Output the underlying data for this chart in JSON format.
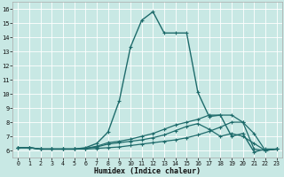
{
  "xlabel": "Humidex (Indice chaleur)",
  "bg_color": "#c8e8e4",
  "grid_color": "#ffffff",
  "line_color": "#1e6b6b",
  "xlim": [
    -0.5,
    23.5
  ],
  "ylim": [
    5.5,
    16.5
  ],
  "xticks": [
    0,
    1,
    2,
    3,
    4,
    5,
    6,
    7,
    8,
    9,
    10,
    11,
    12,
    13,
    14,
    15,
    16,
    17,
    18,
    19,
    20,
    21,
    22,
    23
  ],
  "yticks": [
    6,
    7,
    8,
    9,
    10,
    11,
    12,
    13,
    14,
    15,
    16
  ],
  "line1_x": [
    0,
    1,
    2,
    3,
    4,
    5,
    6,
    7,
    8,
    9,
    10,
    11,
    12,
    13,
    14,
    15,
    16,
    17,
    18,
    19,
    20,
    21,
    22,
    23
  ],
  "line1_y": [
    6.2,
    6.2,
    6.1,
    6.1,
    6.1,
    6.1,
    6.1,
    6.15,
    6.2,
    6.25,
    6.35,
    6.45,
    6.55,
    6.65,
    6.75,
    6.9,
    7.1,
    7.35,
    7.65,
    8.0,
    8.0,
    6.1,
    6.0,
    6.1
  ],
  "line2_x": [
    0,
    1,
    2,
    3,
    4,
    5,
    6,
    7,
    8,
    9,
    10,
    11,
    12,
    13,
    14,
    15,
    16,
    17,
    18,
    19,
    20,
    21,
    22,
    23
  ],
  "line2_y": [
    6.2,
    6.2,
    6.1,
    6.1,
    6.1,
    6.1,
    6.2,
    6.5,
    7.3,
    9.5,
    13.3,
    15.2,
    15.8,
    14.3,
    14.3,
    14.3,
    10.1,
    8.4,
    8.5,
    7.0,
    7.2,
    5.9,
    6.1,
    6.1
  ],
  "line3_x": [
    0,
    1,
    2,
    3,
    4,
    5,
    6,
    7,
    8,
    9,
    10,
    11,
    12,
    13,
    14,
    15,
    16,
    17,
    18,
    19,
    20,
    21,
    22,
    23
  ],
  "line3_y": [
    6.2,
    6.2,
    6.1,
    6.1,
    6.1,
    6.1,
    6.15,
    6.3,
    6.55,
    6.65,
    6.8,
    7.0,
    7.2,
    7.5,
    7.8,
    8.0,
    8.2,
    8.5,
    8.5,
    8.5,
    8.0,
    7.2,
    6.0,
    6.1
  ],
  "line4_x": [
    0,
    1,
    2,
    3,
    4,
    5,
    6,
    7,
    8,
    9,
    10,
    11,
    12,
    13,
    14,
    15,
    16,
    17,
    18,
    19,
    20,
    21,
    22,
    23
  ],
  "line4_y": [
    6.2,
    6.2,
    6.1,
    6.1,
    6.1,
    6.1,
    6.15,
    6.25,
    6.45,
    6.55,
    6.65,
    6.75,
    6.9,
    7.1,
    7.4,
    7.7,
    7.9,
    7.5,
    7.0,
    7.2,
    7.0,
    6.5,
    6.0,
    6.1
  ]
}
